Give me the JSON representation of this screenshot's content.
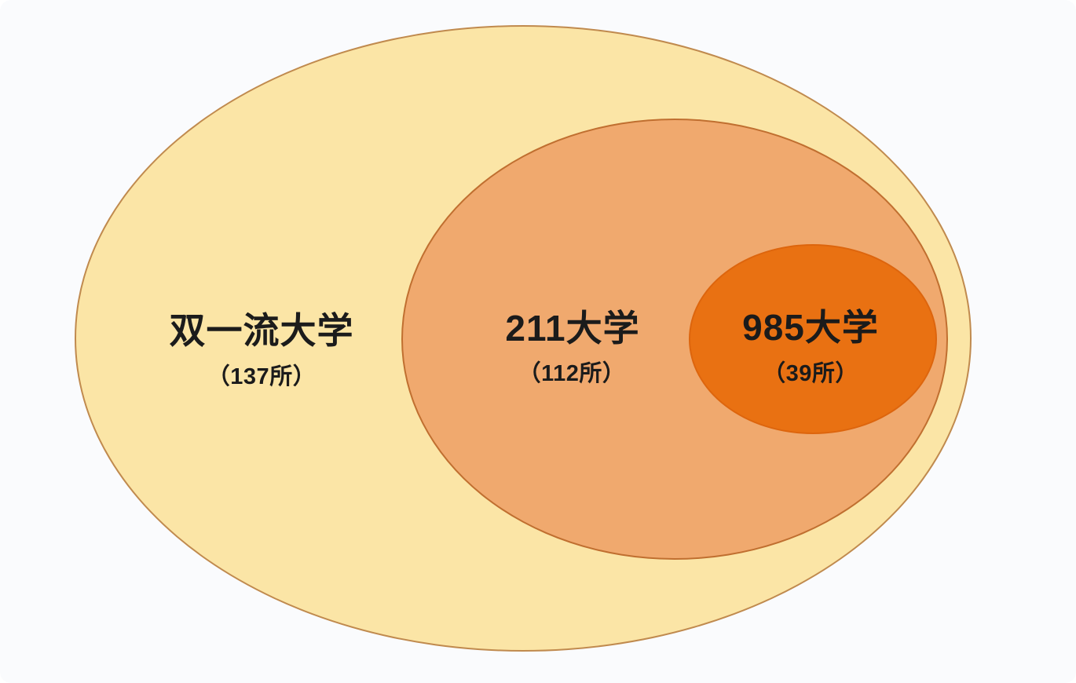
{
  "diagram": {
    "type": "nested-venn",
    "title": "",
    "background_color": "#fafbfd",
    "text_color": "#1b1b1b",
    "sets": [
      {
        "id": "double-first-class",
        "label": "双一流大学",
        "count": 137,
        "count_label": "（137所）",
        "fill_color": "#fbe5a6",
        "border_color": "#c08a4e",
        "level": "outer"
      },
      {
        "id": "project-211",
        "label": "211大学",
        "count": 112,
        "count_label": "（112所）",
        "fill_color": "#f0a96e",
        "border_color": "#c06f30",
        "level": "middle"
      },
      {
        "id": "project-985",
        "label": "985大学",
        "count": 39,
        "count_label": "（39所）",
        "fill_color": "#e97112",
        "border_color": "#dd650d",
        "level": "inner"
      }
    ]
  }
}
